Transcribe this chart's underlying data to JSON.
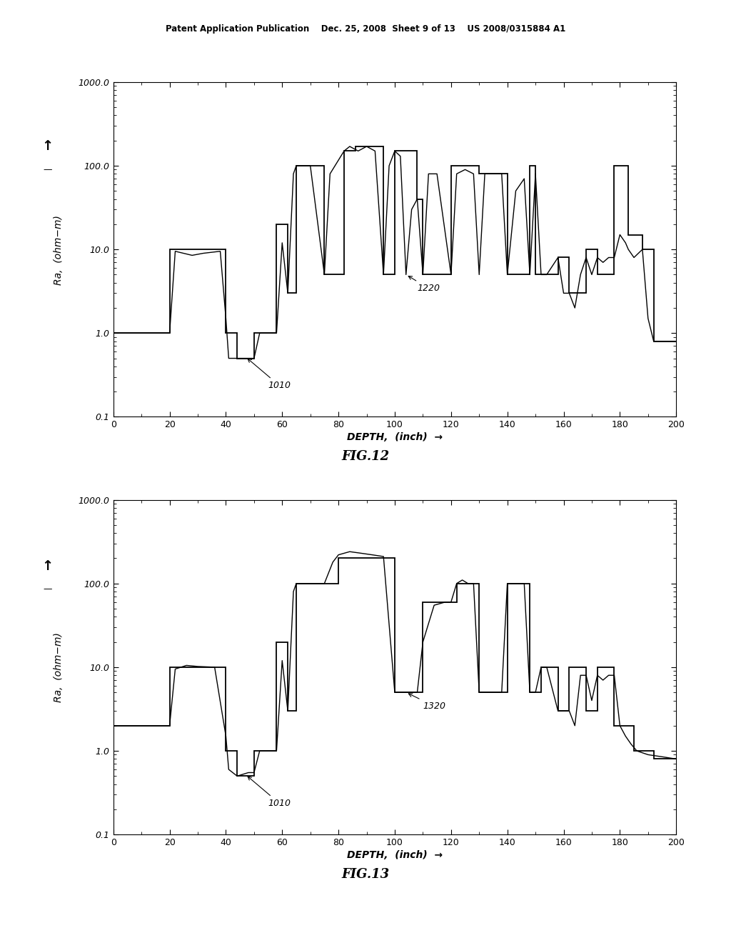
{
  "fig_width": 10.24,
  "fig_height": 13.2,
  "bg_color": "#ffffff",
  "header_text": "Patent Application Publication    Dec. 25, 2008  Sheet 9 of 13    US 2008/0315884 A1",
  "fig12_title": "FIG.12",
  "fig13_title": "FIG.13",
  "ylabel": "Ra,  (ohm−m)",
  "xlabel": "DEPTH,  (inch)",
  "xlim": [
    0,
    200
  ],
  "ylim_log": [
    0.1,
    1000.0
  ],
  "yticks": [
    0.1,
    1.0,
    10.0,
    100.0,
    1000.0
  ],
  "ytick_labels": [
    "0.1",
    "1.0",
    "10.0",
    "100.0",
    "1000.0"
  ],
  "xticks": [
    0,
    20,
    40,
    60,
    80,
    100,
    120,
    140,
    160,
    180,
    200
  ],
  "ann1_text": "1010",
  "ann2_text_12": "1220",
  "ann2_text_13": "1320"
}
